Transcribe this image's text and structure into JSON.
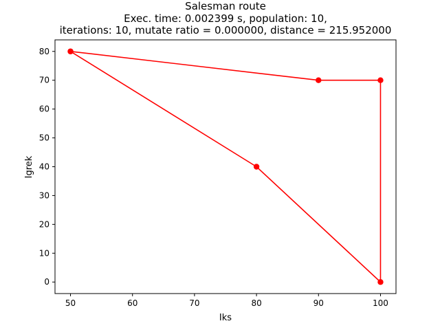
{
  "chart_data": {
    "type": "line",
    "title_lines": [
      "Salesman route",
      "Exec. time: 0.002399 s, population: 10,",
      "iterations: 10, mutate ratio = 0.000000, distance = 215.952000"
    ],
    "xlabel": "Iks",
    "ylabel": "Igrek",
    "xlim": [
      47.5,
      102.5
    ],
    "ylim": [
      -4,
      84
    ],
    "xticks": [
      50,
      60,
      70,
      80,
      90,
      100
    ],
    "yticks": [
      0,
      10,
      20,
      30,
      40,
      50,
      60,
      70,
      80
    ],
    "grid": false,
    "legend": "none",
    "line_color": "#ff0000",
    "marker": "circle",
    "series": [
      {
        "x": [
          50,
          90,
          100,
          100,
          80,
          50
        ],
        "y": [
          80,
          70,
          70,
          0,
          40,
          80
        ]
      }
    ]
  }
}
